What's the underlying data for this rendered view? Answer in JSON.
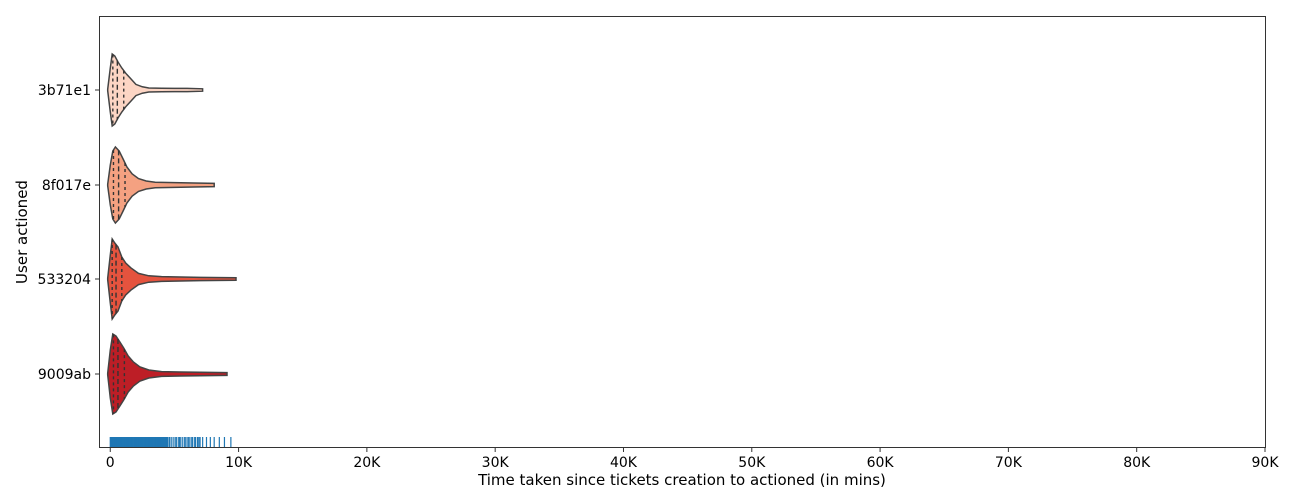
{
  "chart_data": {
    "type": "violin",
    "xlabel": "Time taken since tickets creation to actioned (in mins)",
    "ylabel": "User actioned",
    "xlim": [
      -800,
      90000
    ],
    "x_ticks": [
      0,
      10000,
      20000,
      30000,
      40000,
      50000,
      60000,
      70000,
      80000,
      90000
    ],
    "x_tick_labels": [
      "0",
      "10K",
      "20K",
      "30K",
      "40K",
      "50K",
      "60K",
      "70K",
      "80K",
      "90K"
    ],
    "grid": false,
    "inner": "quartile",
    "categories": [
      "3b71e1",
      "8f017e",
      "533204",
      "9009ab"
    ],
    "series": [
      {
        "color": "#fcd5c4",
        "min": 0,
        "q1": 200,
        "median": 550,
        "q3": 1050,
        "max": 7200,
        "density": [
          [
            -200,
            0.02
          ],
          [
            0,
            0.55
          ],
          [
            150,
            0.9
          ],
          [
            350,
            0.85
          ],
          [
            600,
            0.7
          ],
          [
            900,
            0.55
          ],
          [
            1200,
            0.42
          ],
          [
            1600,
            0.28
          ],
          [
            2000,
            0.14
          ],
          [
            2500,
            0.08
          ],
          [
            3000,
            0.05
          ],
          [
            4000,
            0.045
          ],
          [
            5000,
            0.04
          ],
          [
            6000,
            0.04
          ],
          [
            7200,
            0.03
          ]
        ]
      },
      {
        "color": "#f4a181",
        "min": 0,
        "q1": 250,
        "median": 650,
        "q3": 1150,
        "max": 8100,
        "density": [
          [
            -200,
            0.02
          ],
          [
            0,
            0.5
          ],
          [
            200,
            0.85
          ],
          [
            400,
            0.95
          ],
          [
            700,
            0.85
          ],
          [
            1000,
            0.65
          ],
          [
            1300,
            0.45
          ],
          [
            1700,
            0.28
          ],
          [
            2200,
            0.16
          ],
          [
            2800,
            0.1
          ],
          [
            3500,
            0.07
          ],
          [
            5000,
            0.06
          ],
          [
            6500,
            0.05
          ],
          [
            8100,
            0.04
          ]
        ]
      },
      {
        "color": "#e5533e",
        "min": 0,
        "q1": 150,
        "median": 450,
        "q3": 900,
        "max": 9800,
        "density": [
          [
            -200,
            0.02
          ],
          [
            0,
            0.6
          ],
          [
            150,
            1.0
          ],
          [
            350,
            0.9
          ],
          [
            600,
            0.8
          ],
          [
            900,
            0.55
          ],
          [
            1200,
            0.4
          ],
          [
            1600,
            0.28
          ],
          [
            2200,
            0.14
          ],
          [
            3000,
            0.08
          ],
          [
            4000,
            0.06
          ],
          [
            5500,
            0.05
          ],
          [
            7000,
            0.04
          ],
          [
            9800,
            0.03
          ]
        ]
      },
      {
        "color": "#bd1e26",
        "min": 0,
        "q1": 250,
        "median": 600,
        "q3": 1100,
        "max": 9100,
        "density": [
          [
            -200,
            0.02
          ],
          [
            0,
            0.6
          ],
          [
            200,
            1.0
          ],
          [
            450,
            0.95
          ],
          [
            750,
            0.8
          ],
          [
            1050,
            0.65
          ],
          [
            1400,
            0.45
          ],
          [
            1800,
            0.3
          ],
          [
            2300,
            0.18
          ],
          [
            3000,
            0.1
          ],
          [
            4000,
            0.06
          ],
          [
            5500,
            0.05
          ],
          [
            7000,
            0.045
          ],
          [
            9100,
            0.035
          ]
        ]
      }
    ],
    "rug": {
      "color": "#1f77b4",
      "values": [
        0,
        60,
        120,
        180,
        240,
        300,
        360,
        420,
        480,
        540,
        600,
        660,
        720,
        780,
        840,
        900,
        960,
        1020,
        1080,
        1140,
        1200,
        1260,
        1320,
        1380,
        1440,
        1500,
        1560,
        1620,
        1680,
        1740,
        1800,
        1860,
        1920,
        1980,
        2040,
        2100,
        2160,
        2220,
        2280,
        2340,
        2400,
        2460,
        2520,
        2580,
        2640,
        2700,
        2760,
        2820,
        2880,
        2940,
        3000,
        3060,
        3120,
        3180,
        3240,
        3300,
        3360,
        3420,
        3480,
        3540,
        3600,
        3660,
        3720,
        3780,
        3840,
        3900,
        3960,
        4020,
        4080,
        4140,
        4200,
        4260,
        4320,
        4380,
        4440,
        4500,
        4620,
        4750,
        4900,
        5050,
        5150,
        5300,
        5400,
        5500,
        5650,
        5800,
        5900,
        6050,
        6150,
        6300,
        6400,
        6550,
        6650,
        6800,
        6900,
        7000,
        7200,
        7500,
        7800,
        8100,
        8500,
        8900,
        9400
      ]
    }
  }
}
